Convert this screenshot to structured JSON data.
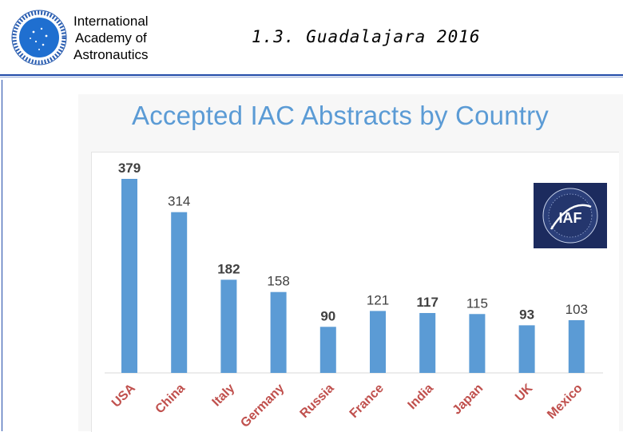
{
  "header": {
    "org_line1": "International",
    "org_line2": "Academy of",
    "org_line3": "Astronautics",
    "slide_title": "1.3. Guadalajara 2016",
    "logo_icon": "iaa-logo-icon"
  },
  "colors": {
    "bar": "#5b9bd5",
    "title": "#5b9bd5",
    "rule": "#1f4aa8",
    "iaf_background": "#1c2b5e"
  },
  "iaf_logo": {
    "icon": "iaf-logo-icon",
    "text": "IAF"
  },
  "chart_data": {
    "type": "bar",
    "title": "Accepted IAC Abstracts by Country",
    "categories": [
      "USA",
      "China",
      "Italy",
      "Germany",
      "Russia",
      "France",
      "India",
      "Japan",
      "UK",
      "Mexico"
    ],
    "values": [
      379,
      314,
      182,
      158,
      90,
      121,
      117,
      115,
      93,
      103
    ],
    "data_labels": true,
    "ylim": [
      0,
      400
    ],
    "grid": false,
    "legend": "none"
  }
}
